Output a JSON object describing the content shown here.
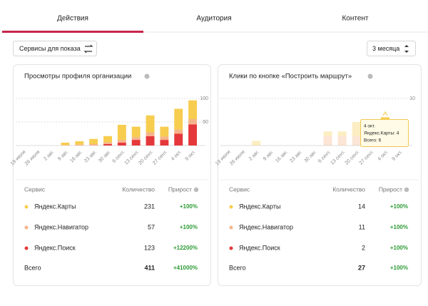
{
  "tabs": [
    "Действия",
    "Аудитория",
    "Контент"
  ],
  "filters": {
    "services": "Сервисы для показа",
    "period": "3 месяца"
  },
  "panels": [
    {
      "title": "Просмотры профиля организации",
      "chart": {
        "type": "bar",
        "stacked": true,
        "categories": [
          "19 июля",
          "26 июля",
          "2 авг.",
          "9 авг.",
          "16 авг.",
          "23 авг.",
          "30 авг.",
          "6 сент.",
          "13 сент.",
          "20 сент.",
          "27 сент.",
          "4 окт.",
          "9 окт."
        ],
        "series": [
          {
            "name": "Яндекс.Поиск",
            "color": "#e5383b",
            "values": [
              0,
              0,
              0,
              0,
              0,
              0,
              3,
              6,
              12,
              20,
              12,
              25,
              45
            ]
          },
          {
            "name": "Яндекс.Навигатор",
            "color": "#f6b48a",
            "values": [
              0,
              0,
              0,
              1,
              2,
              3,
              4,
              6,
              6,
              8,
              7,
              9,
              11
            ]
          },
          {
            "name": "Яндекс.Карты",
            "color": "#f7cd4f",
            "values": [
              0,
              0,
              0,
              5,
              7,
              11,
              13,
              32,
              22,
              36,
              21,
              44,
              40
            ]
          }
        ],
        "ylim": [
          0,
          100
        ],
        "yticks": [
          50,
          100
        ],
        "grid": true
      },
      "table": {
        "columns": [
          "Сервис",
          "Количество",
          "Прирост"
        ],
        "rows": [
          {
            "count": 231,
            "growth": "+100%"
          },
          {
            "count": 57,
            "growth": "+100%"
          },
          {
            "count": 123,
            "growth": "+12200%"
          }
        ],
        "total": {
          "label": "Всего",
          "count": 411,
          "growth": "+41000%"
        }
      }
    },
    {
      "title": "Клики по кнопке «Построить маршрут»",
      "chart": {
        "type": "bar",
        "stacked": true,
        "categories": [
          "19 июля",
          "26 июля",
          "2 авг.",
          "9 авг.",
          "16 авг.",
          "23 авг.",
          "30 авг.",
          "6 сент.",
          "13 сент.",
          "20 сент.",
          "27 сент.",
          "4 окт.",
          "9 окт."
        ],
        "series": [
          {
            "name": "Яндекс.Поиск",
            "color": "#e5383b",
            "values": [
              0,
              0,
              0,
              0,
              0,
              0,
              0,
              0,
              0,
              0,
              1,
              0,
              1
            ]
          },
          {
            "name": "Яндекс.Навигатор",
            "color": "#f6b48a",
            "values": [
              0,
              0,
              0,
              0,
              0,
              0,
              0,
              2,
              2,
              2,
              2,
              2,
              1
            ]
          },
          {
            "name": "Яндекс.Карты",
            "color": "#f7cd4f",
            "values": [
              0,
              0,
              1,
              0,
              0,
              0,
              0,
              1,
              1,
              3,
              2,
              4,
              2
            ]
          }
        ],
        "ylim": [
          0,
          10
        ],
        "yticks": [
          10
        ],
        "grid": true
      },
      "tooltip": {
        "date": "4 окт.",
        "lines": [
          "Яндекс.Карты: 4",
          "Всего: 6"
        ]
      },
      "table": {
        "columns": [
          "Сервис",
          "Количество",
          "Прирост"
        ],
        "rows": [
          {
            "count": 14,
            "growth": "+100%"
          },
          {
            "count": 11,
            "growth": "+100%"
          },
          {
            "count": 2,
            "growth": "+100%"
          }
        ],
        "total": {
          "label": "Всего",
          "count": 27,
          "growth": "+100%"
        }
      }
    }
  ]
}
